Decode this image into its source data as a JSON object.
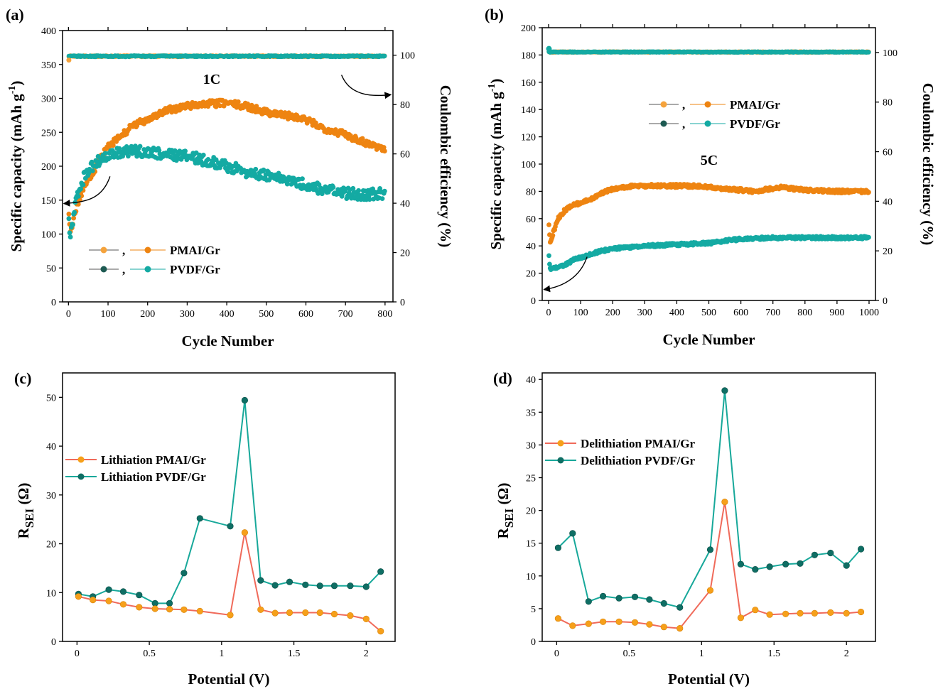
{
  "colors": {
    "pmai_light": "#f5a33c",
    "pmai_dark": "#ee8411",
    "pvdf_dark": "#1d5a52",
    "pvdf": "#14aaa3",
    "line_red": "#f06a5a",
    "line_teal": "#17a89a",
    "marker_teal": "#0f6e64",
    "marker_orange": "#f6a01a"
  },
  "chart_data": [
    {
      "id": "a",
      "panel_label": "(a)",
      "type": "scatter",
      "xlabel": "Cycle Number",
      "ylabel": "Specific capacity (mAh g⁻¹)",
      "ylabel_main": "Specific capacity (mAh g",
      "ylabel_sup": "-1",
      "ylabel_end": ")",
      "y2label": "Coulombic efficiency (%)",
      "xlim": [
        -15,
        820
      ],
      "ylim": [
        0,
        400
      ],
      "y2lim": [
        0,
        110
      ],
      "xticks": [
        "0",
        "100",
        "200",
        "300",
        "400",
        "500",
        "600",
        "700",
        "800"
      ],
      "yticks": [
        "0",
        "50",
        "100",
        "150",
        "200",
        "250",
        "300",
        "350",
        "400"
      ],
      "y2ticks": [
        "0",
        "20",
        "40",
        "60",
        "80",
        "100"
      ],
      "annotation": "1C",
      "legend": [
        "PMAI/Gr",
        "PVDF/Gr"
      ],
      "legend_sep": ",",
      "n_cycles": 800,
      "series": [
        {
          "name": "PMAI/Gr capacity",
          "kind": "capacity",
          "key_x": [
            1,
            5,
            10,
            20,
            40,
            60,
            80,
            100,
            130,
            160,
            200,
            250,
            300,
            350,
            400,
            450,
            500,
            550,
            600,
            650,
            700,
            750,
            800
          ],
          "key_y": [
            130,
            105,
            115,
            140,
            170,
            190,
            210,
            228,
            243,
            258,
            270,
            282,
            289,
            292,
            293,
            288,
            280,
            275,
            268,
            255,
            247,
            235,
            225
          ],
          "noise": 5
        },
        {
          "name": "PVDF/Gr capacity",
          "kind": "capacity",
          "key_x": [
            1,
            5,
            10,
            20,
            40,
            60,
            80,
            100,
            130,
            160,
            200,
            250,
            300,
            350,
            400,
            450,
            500,
            550,
            600,
            650,
            700,
            750,
            800
          ],
          "key_y": [
            120,
            95,
            115,
            155,
            185,
            200,
            210,
            215,
            220,
            222,
            221,
            218,
            215,
            208,
            200,
            192,
            186,
            180,
            172,
            165,
            160,
            158,
            160
          ],
          "noise": 8
        },
        {
          "name": "PMAI/Gr CE",
          "kind": "ce",
          "value": 99.6,
          "noise": 0.25
        },
        {
          "name": "PVDF/Gr CE",
          "kind": "ce",
          "value": 99.6,
          "noise": 0.25
        }
      ]
    },
    {
      "id": "b",
      "panel_label": "(b)",
      "type": "scatter",
      "xlabel": "Cycle Number",
      "ylabel": "Specific capacity (mAh g⁻¹)",
      "ylabel_main": "Specific capacity (mAh g",
      "ylabel_sup": "-1",
      "ylabel_end": ")",
      "y2label": "Coulombic efficiency (%)",
      "xlim": [
        -20,
        1020
      ],
      "ylim": [
        0,
        200
      ],
      "y2lim": [
        0,
        110
      ],
      "xticks": [
        "0",
        "100",
        "200",
        "300",
        "400",
        "500",
        "600",
        "700",
        "800",
        "900",
        "1000"
      ],
      "yticks": [
        "0",
        "20",
        "40",
        "60",
        "80",
        "100",
        "120",
        "140",
        "160",
        "180",
        "200"
      ],
      "y2ticks": [
        "0",
        "20",
        "40",
        "60",
        "80",
        "100"
      ],
      "annotation": "5C",
      "legend": [
        "PMAI/Gr",
        "PVDF/Gr"
      ],
      "legend_sep": ",",
      "n_cycles": 1000,
      "series": [
        {
          "name": "PMAI/Gr capacity",
          "kind": "capacity",
          "key_x": [
            1,
            5,
            15,
            30,
            50,
            80,
            120,
            160,
            200,
            260,
            300,
            400,
            470,
            550,
            640,
            720,
            800,
            900,
            1000
          ],
          "key_y": [
            55,
            42,
            50,
            60,
            66,
            70,
            73,
            78,
            82,
            84,
            84,
            84,
            84,
            82,
            80,
            83,
            81,
            80,
            80
          ],
          "noise": 1.2
        },
        {
          "name": "PVDF/Gr capacity",
          "kind": "capacity",
          "key_x": [
            1,
            5,
            20,
            50,
            80,
            120,
            160,
            200,
            300,
            400,
            500,
            560,
            600,
            700,
            800,
            900,
            1000
          ],
          "key_y": [
            32,
            23,
            24,
            26,
            30,
            33,
            36,
            38,
            40,
            41,
            42,
            44,
            45,
            46,
            46,
            46,
            46
          ],
          "noise": 1.0
        },
        {
          "name": "PMAI/Gr CE",
          "kind": "ce",
          "value": 100.2,
          "noise": 0.15
        },
        {
          "name": "PVDF/Gr CE",
          "kind": "ce",
          "value": 100.2,
          "noise": 0.15
        }
      ]
    },
    {
      "id": "c",
      "panel_label": "(c)",
      "type": "line",
      "xlabel": "Potential (V)",
      "ylabel_main": "R",
      "ylabel_sub": "SEI",
      "ylabel_end": " (Ω)",
      "xlim": [
        -0.1,
        2.2
      ],
      "ylim": [
        0,
        55
      ],
      "xticks": [
        0,
        0.5,
        1,
        1.5,
        2
      ],
      "xtick_labels": [
        "0",
        "0.5",
        "1",
        "1.5",
        "2"
      ],
      "yticks": [
        0,
        10,
        20,
        30,
        40,
        50
      ],
      "ytick_labels": [
        "0",
        "10",
        "20",
        "30",
        "40",
        "50"
      ],
      "x": [
        0.01,
        0.11,
        0.22,
        0.32,
        0.43,
        0.54,
        0.64,
        0.74,
        0.85,
        1.06,
        1.16,
        1.27,
        1.37,
        1.47,
        1.58,
        1.68,
        1.78,
        1.89,
        2.0,
        2.1
      ],
      "series": [
        {
          "name": "Lithiation PMAI/Gr",
          "style": "red",
          "values": [
            9.2,
            8.5,
            8.3,
            7.6,
            7.0,
            6.7,
            6.6,
            6.5,
            6.2,
            5.4,
            22.3,
            6.5,
            5.8,
            5.9,
            5.9,
            5.9,
            5.6,
            5.3,
            4.6,
            2.1
          ]
        },
        {
          "name": "Lithiation PVDF/Gr",
          "style": "teal",
          "values": [
            9.7,
            9.2,
            10.6,
            10.2,
            9.5,
            7.8,
            7.8,
            14.0,
            25.2,
            23.6,
            49.4,
            12.5,
            11.5,
            12.2,
            11.6,
            11.4,
            11.4,
            11.4,
            11.2,
            14.3
          ]
        }
      ]
    },
    {
      "id": "d",
      "panel_label": "(d)",
      "type": "line",
      "xlabel": "Potential (V)",
      "ylabel_main": "R",
      "ylabel_sub": "SEI",
      "ylabel_end": " (Ω)",
      "xlim": [
        -0.1,
        2.2
      ],
      "ylim": [
        0,
        41
      ],
      "xticks": [
        0,
        0.5,
        1,
        1.5,
        2
      ],
      "xtick_labels": [
        "0",
        "0.5",
        "1",
        "1.5",
        "2"
      ],
      "yticks": [
        0,
        5,
        10,
        15,
        20,
        25,
        30,
        35,
        40
      ],
      "ytick_labels": [
        "0",
        "5",
        "10",
        "15",
        "20",
        "25",
        "30",
        "35",
        "40"
      ],
      "x": [
        0.01,
        0.11,
        0.22,
        0.32,
        0.43,
        0.54,
        0.64,
        0.74,
        0.85,
        1.06,
        1.16,
        1.27,
        1.37,
        1.47,
        1.58,
        1.68,
        1.78,
        1.89,
        2.0,
        2.1
      ],
      "series": [
        {
          "name": "Delithiation PMAI/Gr",
          "style": "red",
          "values": [
            3.5,
            2.4,
            2.7,
            3.0,
            3.0,
            2.9,
            2.6,
            2.2,
            2.0,
            7.8,
            21.3,
            3.6,
            4.8,
            4.1,
            4.2,
            4.3,
            4.3,
            4.4,
            4.3,
            4.5
          ]
        },
        {
          "name": "Delithiation PVDF/Gr",
          "style": "teal",
          "values": [
            14.3,
            16.5,
            6.1,
            6.9,
            6.6,
            6.8,
            6.4,
            5.8,
            5.2,
            14.0,
            38.3,
            11.8,
            11.0,
            11.4,
            11.8,
            11.9,
            13.2,
            13.5,
            11.6,
            14.1
          ]
        }
      ]
    }
  ]
}
